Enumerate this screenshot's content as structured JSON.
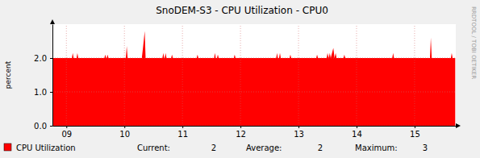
{
  "chart_data": {
    "type": "area",
    "title": "SnoDEM-S3 - CPU Utilization - CPU0",
    "y_label": "percent",
    "side_text": "RRDTOOL / TOBI OETIKER",
    "x": [
      8.77,
      9.095,
      9.11,
      9.125,
      9.175,
      9.19,
      9.205,
      9.655,
      9.67,
      9.685,
      9.695,
      9.71,
      9.725,
      10.025,
      10.04,
      10.055,
      10.3,
      10.32,
      10.35,
      10.365,
      10.655,
      10.67,
      10.685,
      10.695,
      10.71,
      10.725,
      10.805,
      10.82,
      10.835,
      11.245,
      11.26,
      11.275,
      11.545,
      11.56,
      11.575,
      11.595,
      11.61,
      11.625,
      11.885,
      11.9,
      11.915,
      12.615,
      12.63,
      12.645,
      12.665,
      12.68,
      12.695,
      12.845,
      12.86,
      12.875,
      13.305,
      13.32,
      13.335,
      13.485,
      13.5,
      13.52,
      13.54,
      13.555,
      13.6,
      13.62,
      13.64,
      13.655,
      13.775,
      13.79,
      13.805,
      14.615,
      14.63,
      14.645,
      15.265,
      15.28,
      15.295,
      15.625,
      15.64,
      15.655,
      15.7
    ],
    "series": [
      {
        "name": "CPU Utilization",
        "color": "#ff0000",
        "values": [
          2,
          2,
          2.15,
          2,
          2,
          2.15,
          2,
          2,
          2.1,
          2,
          2,
          2.1,
          2,
          2,
          2.35,
          2,
          2,
          2.3,
          2.8,
          2,
          2,
          2.15,
          2,
          2,
          2.15,
          2,
          2,
          2.1,
          2,
          2,
          2.1,
          2,
          2,
          2.15,
          2,
          2,
          2.1,
          2,
          2,
          2.1,
          2,
          2,
          2.15,
          2,
          2,
          2.15,
          2,
          2,
          2.1,
          2,
          2,
          2.1,
          2,
          2,
          2.15,
          2,
          2.15,
          2,
          2.3,
          2,
          2.15,
          2,
          2,
          2.1,
          2,
          2,
          2.15,
          2,
          2,
          2.6,
          2,
          2,
          2.15,
          2,
          2
        ]
      }
    ],
    "xlim": [
      8.76,
      15.71
    ],
    "xticks": [
      {
        "value": 9,
        "label": "09"
      },
      {
        "value": 10,
        "label": "10"
      },
      {
        "value": 11,
        "label": "11"
      },
      {
        "value": 12,
        "label": "12"
      },
      {
        "value": 13,
        "label": "13"
      },
      {
        "value": 14,
        "label": "14"
      },
      {
        "value": 15,
        "label": "15"
      }
    ],
    "ylim": [
      0,
      3
    ],
    "yticks": [
      {
        "value": 0,
        "label": "0.0"
      },
      {
        "value": 1,
        "label": "1.0"
      },
      {
        "value": 2,
        "label": "2.0"
      }
    ],
    "grid": true,
    "legend": "bottom-left",
    "stats": [
      {
        "label": "Current:",
        "value": 2
      },
      {
        "label": "Average:",
        "value": 2
      },
      {
        "label": "Maximum:",
        "value": 3
      }
    ]
  }
}
